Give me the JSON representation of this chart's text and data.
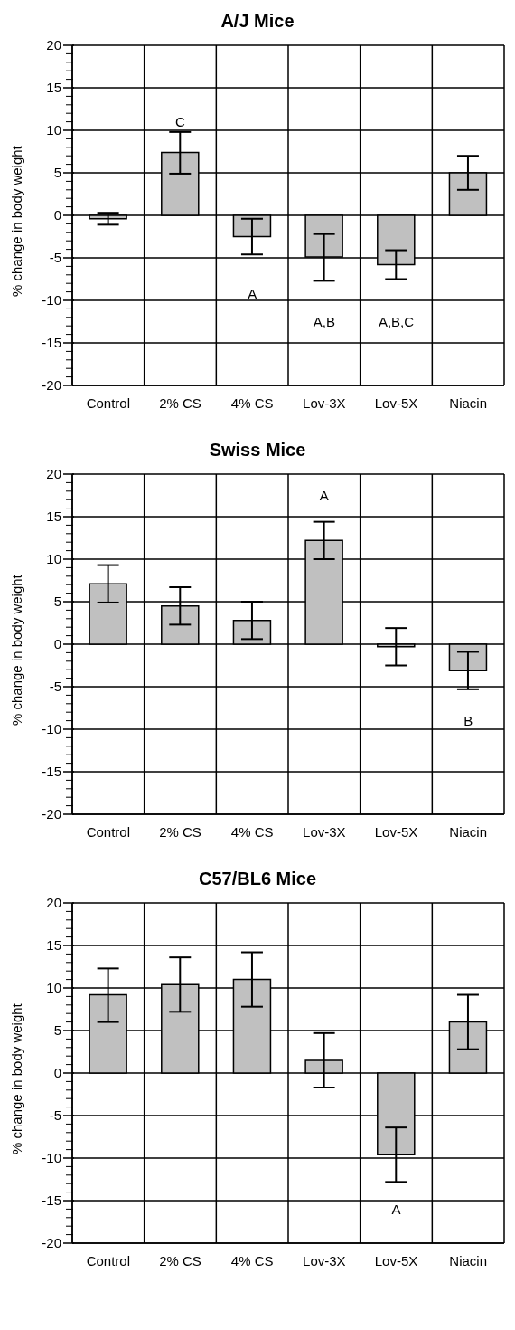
{
  "chart_data": [
    {
      "type": "bar",
      "title": "A/J Mice",
      "ylabel": "% change in body weight",
      "categories": [
        "Control",
        "2% CS",
        "4% CS",
        "Lov-3X",
        "Lov-5X",
        "Niacin"
      ],
      "series": [
        {
          "color": "#c0c0c0",
          "values": [
            -0.4,
            7.4,
            -2.5,
            -4.9,
            -5.8,
            5.0
          ],
          "errors": [
            [
              -1.1,
              0.3
            ],
            [
              4.9,
              9.8
            ],
            [
              -4.6,
              -0.4
            ],
            [
              -7.7,
              -2.2
            ],
            [
              -7.5,
              -4.1
            ],
            [
              3.0,
              7.0
            ]
          ]
        }
      ],
      "ylim": [
        -20,
        20
      ],
      "yticks": [
        -20,
        {
          "value": -19,
          "label": null
        },
        {
          "value": -18,
          "label": null
        },
        {
          "value": -17,
          "label": null
        },
        {
          "value": -16,
          "label": null
        },
        -15,
        {
          "value": -14,
          "label": null
        },
        {
          "value": -13,
          "label": null
        },
        {
          "value": -12,
          "label": null
        },
        {
          "value": -11,
          "label": null
        },
        -10,
        {
          "value": -9,
          "label": null
        },
        {
          "value": -8,
          "label": null
        },
        {
          "value": -7,
          "label": null
        },
        {
          "value": -6,
          "label": null
        },
        -5,
        {
          "value": -4,
          "label": null
        },
        {
          "value": -3,
          "label": null
        },
        {
          "value": -2,
          "label": null
        },
        {
          "value": -1,
          "label": null
        },
        0,
        {
          "value": 1,
          "label": null
        },
        {
          "value": 2,
          "label": null
        },
        {
          "value": 3,
          "label": null
        },
        {
          "value": 4,
          "label": null
        },
        5,
        {
          "value": 6,
          "label": null
        },
        {
          "value": 7,
          "label": null
        },
        {
          "value": 8,
          "label": null
        },
        {
          "value": 9,
          "label": null
        },
        10,
        {
          "value": 11,
          "label": null
        },
        {
          "value": 12,
          "label": null
        },
        {
          "value": 13,
          "label": null
        },
        {
          "value": 14,
          "label": null
        },
        15,
        {
          "value": 16,
          "label": null
        },
        {
          "value": 17,
          "label": null
        },
        {
          "value": 18,
          "label": null
        },
        {
          "value": 19,
          "label": null
        },
        20
      ],
      "grid": true,
      "annotations": [
        "C",
        "A",
        "A,B",
        "A,B,C"
      ]
    },
    {
      "type": "bar",
      "title": "Swiss Mice",
      "ylabel": "% change in body weight",
      "categories": [
        "Control",
        "2% CS",
        "4% CS",
        "Lov-3X",
        "Lov-5X",
        "Niacin"
      ],
      "series": [
        {
          "color": "#c0c0c0",
          "values": [
            7.1,
            4.5,
            2.8,
            12.2,
            -0.3,
            -3.1
          ],
          "errors": [
            [
              4.9,
              9.3
            ],
            [
              2.3,
              6.7
            ],
            [
              0.6,
              5.0
            ],
            [
              10.0,
              14.4
            ],
            [
              -2.5,
              1.9
            ],
            [
              -5.3,
              -0.9
            ]
          ]
        }
      ],
      "ylim": [
        -20,
        20
      ],
      "yticks": [
        -20,
        {
          "value": -19,
          "label": null
        },
        {
          "value": -18,
          "label": null
        },
        {
          "value": -17,
          "label": null
        },
        {
          "value": -16,
          "label": null
        },
        -15,
        {
          "value": -14,
          "label": null
        },
        {
          "value": -13,
          "label": null
        },
        {
          "value": -12,
          "label": null
        },
        {
          "value": -11,
          "label": null
        },
        -10,
        {
          "value": -9,
          "label": null
        },
        {
          "value": -8,
          "label": null
        },
        {
          "value": -7,
          "label": null
        },
        {
          "value": -6,
          "label": null
        },
        -5,
        {
          "value": -4,
          "label": null
        },
        {
          "value": -3,
          "label": null
        },
        {
          "value": -2,
          "label": null
        },
        {
          "value": -1,
          "label": null
        },
        0,
        {
          "value": 1,
          "label": null
        },
        {
          "value": 2,
          "label": null
        },
        {
          "value": 3,
          "label": null
        },
        {
          "value": 4,
          "label": null
        },
        5,
        {
          "value": 6,
          "label": null
        },
        {
          "value": 7,
          "label": null
        },
        {
          "value": 8,
          "label": null
        },
        {
          "value": 9,
          "label": null
        },
        10,
        {
          "value": 11,
          "label": null
        },
        {
          "value": 12,
          "label": null
        },
        {
          "value": 13,
          "label": null
        },
        {
          "value": 14,
          "label": null
        },
        15,
        {
          "value": 16,
          "label": null
        },
        {
          "value": 17,
          "label": null
        },
        {
          "value": 18,
          "label": null
        },
        {
          "value": 19,
          "label": null
        },
        20
      ],
      "grid": true,
      "annotations": [
        "A",
        "B"
      ]
    },
    {
      "type": "bar",
      "title": "C57/BL6 Mice",
      "ylabel": "% change in body weight",
      "categories": [
        "Control",
        "2% CS",
        "4% CS",
        "Lov-3X",
        "Lov-5X",
        "Niacin"
      ],
      "series": [
        {
          "color": "#c0c0c0",
          "values": [
            9.2,
            10.4,
            11.0,
            1.5,
            -9.6,
            6.0
          ],
          "errors": [
            [
              6.0,
              12.3
            ],
            [
              7.2,
              13.6
            ],
            [
              7.8,
              14.2
            ],
            [
              -1.7,
              4.7
            ],
            [
              -12.8,
              -6.4
            ],
            [
              2.8,
              9.2
            ]
          ]
        }
      ],
      "ylim": [
        -20,
        20
      ],
      "yticks": [
        -20,
        {
          "value": -19,
          "label": null
        },
        {
          "value": -18,
          "label": null
        },
        {
          "value": -17,
          "label": null
        },
        {
          "value": -16,
          "label": null
        },
        -15,
        {
          "value": -14,
          "label": null
        },
        {
          "value": -13,
          "label": null
        },
        {
          "value": -12,
          "label": null
        },
        {
          "value": -11,
          "label": null
        },
        -10,
        {
          "value": -9,
          "label": null
        },
        {
          "value": -8,
          "label": null
        },
        {
          "value": -7,
          "label": null
        },
        {
          "value": -6,
          "label": null
        },
        -5,
        {
          "value": -4,
          "label": null
        },
        {
          "value": -3,
          "label": null
        },
        {
          "value": -2,
          "label": null
        },
        {
          "value": -1,
          "label": null
        },
        0,
        {
          "value": 1,
          "label": null
        },
        {
          "value": 2,
          "label": null
        },
        {
          "value": 3,
          "label": null
        },
        {
          "value": 4,
          "label": null
        },
        5,
        {
          "value": 6,
          "label": null
        },
        {
          "value": 7,
          "label": null
        },
        {
          "value": 8,
          "label": null
        },
        {
          "value": 9,
          "label": null
        },
        10,
        {
          "value": 11,
          "label": null
        },
        {
          "value": 12,
          "label": null
        },
        {
          "value": 13,
          "label": null
        },
        {
          "value": 14,
          "label": null
        },
        15,
        {
          "value": 16,
          "label": null
        },
        {
          "value": 17,
          "label": null
        },
        {
          "value": 18,
          "label": null
        },
        {
          "value": 19,
          "label": null
        },
        20
      ],
      "grid": true,
      "annotations": [
        "A"
      ]
    }
  ]
}
